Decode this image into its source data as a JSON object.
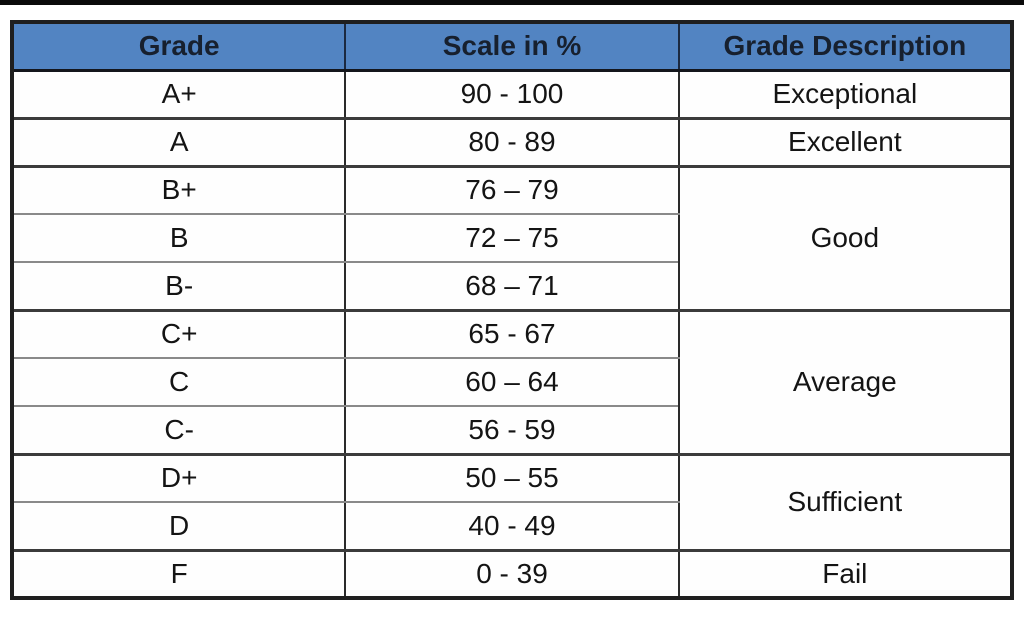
{
  "table": {
    "headers": [
      "Grade",
      "Scale in %",
      "Grade Description"
    ],
    "rows": [
      {
        "grade": "A+",
        "scale": "90 - 100",
        "description": "Exceptional",
        "description_rowspan": 1
      },
      {
        "grade": "A",
        "scale": "80 - 89",
        "description": "Excellent",
        "description_rowspan": 1
      },
      {
        "grade": "B+",
        "scale": "76 – 79",
        "description": "Good",
        "description_rowspan": 3
      },
      {
        "grade": "B",
        "scale": "72 – 75"
      },
      {
        "grade": "B-",
        "scale": "68 – 71"
      },
      {
        "grade": "C+",
        "scale": "65 - 67",
        "description": "Average",
        "description_rowspan": 3
      },
      {
        "grade": "C",
        "scale": "60 – 64"
      },
      {
        "grade": "C-",
        "scale": "56 - 59"
      },
      {
        "grade": "D+",
        "scale": "50 – 55",
        "description": "Sufficient",
        "description_rowspan": 2
      },
      {
        "grade": "D",
        "scale": "40 - 49"
      },
      {
        "grade": "F",
        "scale": "0 - 39",
        "description": "Fail",
        "description_rowspan": 1
      }
    ]
  },
  "colors": {
    "header_bg": "#5284C2",
    "header_text": "#17202E",
    "body_text": "#141414",
    "border_dark": "#1F1F1F"
  }
}
